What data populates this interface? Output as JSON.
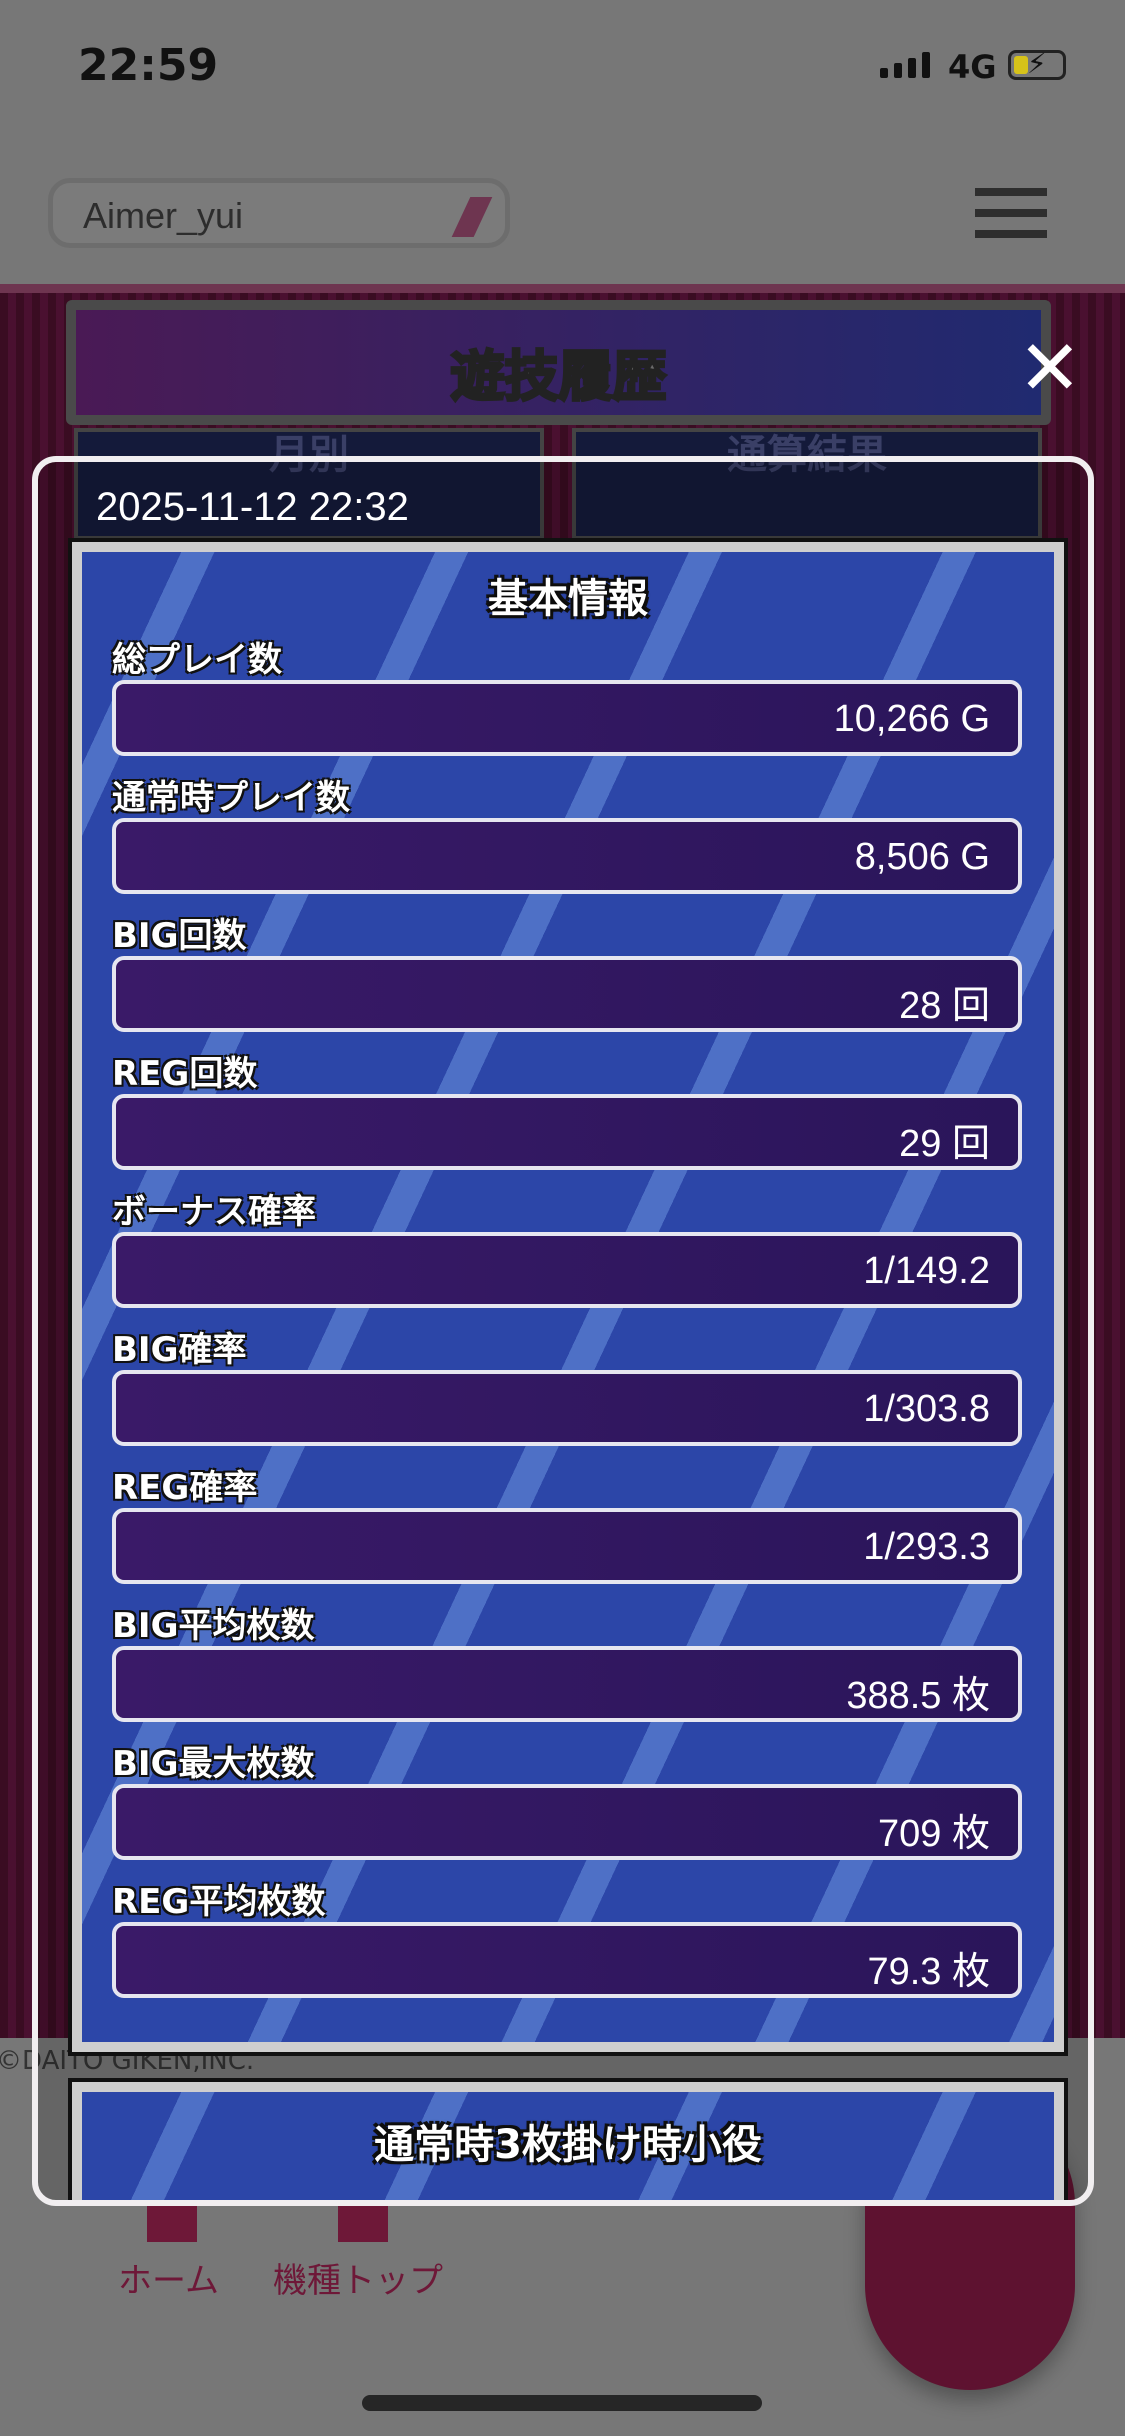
{
  "status_bar": {
    "time": "22:59",
    "network": "4G",
    "battery_charging": true
  },
  "header": {
    "username": "Aimer_yui",
    "edit_icon": "pencil-icon",
    "menu_icon": "hamburger-icon"
  },
  "banner": {
    "title": "遊技履歴"
  },
  "tabs": [
    {
      "label": "月別"
    },
    {
      "label": "通算結果"
    }
  ],
  "modal": {
    "date": "2025-11-12 22:32",
    "close_icon": "close-icon",
    "sections": [
      {
        "title": "基本情報",
        "rows": [
          {
            "label": "総プレイ数",
            "value": "10,266 G"
          },
          {
            "label": "通常時プレイ数",
            "value": "8,506 G"
          },
          {
            "label": "BIG回数",
            "value": "28 回"
          },
          {
            "label": "REG回数",
            "value": "29 回"
          },
          {
            "label": "ボーナス確率",
            "value": "1/149.2"
          },
          {
            "label": "BIG確率",
            "value": "1/303.8"
          },
          {
            "label": "REG確率",
            "value": "1/293.3"
          },
          {
            "label": "BIG平均枚数",
            "value": "388.5 枚"
          },
          {
            "label": "BIG最大枚数",
            "value": "709 枚"
          },
          {
            "label": "REG平均枚数",
            "value": "79.3 枚"
          }
        ]
      },
      {
        "title": "通常時3枚掛け時小役"
      }
    ]
  },
  "footer": {
    "copyright": "©DAITO GIKEN,INC."
  },
  "bottom_nav": [
    {
      "label": "ホーム",
      "icon": "home-icon"
    },
    {
      "label": "機種トップ",
      "icon": "building-icon"
    }
  ],
  "colors": {
    "accent": "#6e1838",
    "panel": "#2c46a8",
    "field": "#3a1a68"
  }
}
